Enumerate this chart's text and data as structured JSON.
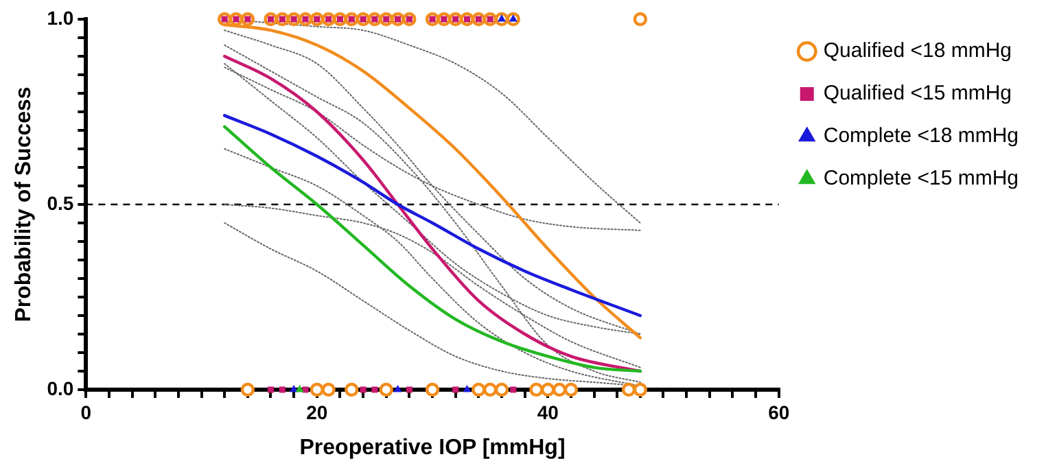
{
  "chart_data": {
    "type": "line",
    "xlabel": "Preoperative IOP [mmHg]",
    "ylabel": "Probability of Success",
    "xlim": [
      0,
      60
    ],
    "ylim": [
      0,
      1
    ],
    "xticks": [
      0,
      {
        "value": 2,
        "label": null
      },
      {
        "value": 4,
        "label": null
      },
      {
        "value": 6,
        "label": null
      },
      {
        "value": 8,
        "label": null
      },
      {
        "value": 10,
        "label": null
      },
      {
        "value": 12,
        "label": null
      },
      {
        "value": 14,
        "label": null
      },
      {
        "value": 16,
        "label": null
      },
      {
        "value": 18,
        "label": null
      },
      20,
      {
        "value": 22,
        "label": null
      },
      {
        "value": 24,
        "label": null
      },
      {
        "value": 26,
        "label": null
      },
      {
        "value": 28,
        "label": null
      },
      {
        "value": 30,
        "label": null
      },
      {
        "value": 32,
        "label": null
      },
      {
        "value": 34,
        "label": null
      },
      {
        "value": 36,
        "label": null
      },
      {
        "value": 38,
        "label": null
      },
      40,
      {
        "value": 42,
        "label": null
      },
      {
        "value": 44,
        "label": null
      },
      {
        "value": 46,
        "label": null
      },
      {
        "value": 48,
        "label": null
      },
      {
        "value": 50,
        "label": null
      },
      {
        "value": 52,
        "label": null
      },
      {
        "value": 54,
        "label": null
      },
      {
        "value": 56,
        "label": null
      },
      {
        "value": 58,
        "label": null
      },
      60
    ],
    "yticks": [
      {
        "value": 0,
        "label": "0.0"
      },
      {
        "value": 0.05,
        "label": null
      },
      {
        "value": 0.1,
        "label": null
      },
      {
        "value": 0.15,
        "label": null
      },
      {
        "value": 0.2,
        "label": null
      },
      {
        "value": 0.25,
        "label": null
      },
      {
        "value": 0.3,
        "label": null
      },
      {
        "value": 0.35,
        "label": null
      },
      {
        "value": 0.4,
        "label": null
      },
      {
        "value": 0.45,
        "label": null
      },
      {
        "value": 0.5,
        "label": "0.5"
      },
      {
        "value": 0.55,
        "label": null
      },
      {
        "value": 0.6,
        "label": null
      },
      {
        "value": 0.65,
        "label": null
      },
      {
        "value": 0.7,
        "label": null
      },
      {
        "value": 0.75,
        "label": null
      },
      {
        "value": 0.8,
        "label": null
      },
      {
        "value": 0.85,
        "label": null
      },
      {
        "value": 0.9,
        "label": null
      },
      {
        "value": 0.95,
        "label": null
      },
      {
        "value": 1,
        "label": "1.0"
      }
    ],
    "grid": false,
    "legend": "right",
    "ref_lines": [
      {
        "axis": "y",
        "value": 0.5,
        "label": null,
        "color": "#000000",
        "line_style": "dashed"
      }
    ],
    "series": [
      {
        "type": "line",
        "color": "#666666",
        "line_style": "dotted",
        "x": [
          12,
          16,
          20,
          24,
          28,
          32,
          36,
          40,
          44,
          48
        ],
        "values": [
          0.93,
          0.86,
          0.79,
          0.72,
          0.6,
          0.45,
          0.28,
          0.12,
          0.05,
          0.02
        ]
      },
      {
        "type": "line",
        "color": "#666666",
        "line_style": "dotted",
        "x": [
          12,
          16,
          20,
          24,
          28,
          32,
          36,
          40,
          44,
          48
        ],
        "values": [
          1.0,
          0.99,
          0.98,
          0.97,
          0.93,
          0.88,
          0.8,
          0.68,
          0.56,
          0.45
        ]
      },
      {
        "type": "line",
        "color": "#666666",
        "line_style": "dotted",
        "x": [
          12,
          16,
          20,
          24,
          27,
          30,
          34,
          38,
          42,
          48
        ],
        "values": [
          0.65,
          0.6,
          0.55,
          0.47,
          0.4,
          0.3,
          0.18,
          0.1,
          0.05,
          0.01
        ]
      },
      {
        "type": "line",
        "color": "#666666",
        "line_style": "dotted",
        "x": [
          12,
          16,
          20,
          24,
          27,
          30,
          34,
          38,
          42,
          48
        ],
        "values": [
          0.97,
          0.93,
          0.88,
          0.76,
          0.66,
          0.55,
          0.42,
          0.3,
          0.22,
          0.15
        ]
      },
      {
        "type": "line",
        "color": "#666666",
        "line_style": "dotted",
        "x": [
          12,
          16,
          20,
          24,
          27,
          30,
          34,
          38,
          42,
          48
        ],
        "values": [
          0.5,
          0.49,
          0.47,
          0.45,
          0.42,
          0.37,
          0.28,
          0.2,
          0.13,
          0.06
        ]
      },
      {
        "type": "line",
        "color": "#666666",
        "line_style": "dotted",
        "x": [
          12,
          16,
          20,
          24,
          27,
          30,
          34,
          38,
          42,
          48
        ],
        "values": [
          0.87,
          0.81,
          0.75,
          0.66,
          0.6,
          0.55,
          0.5,
          0.46,
          0.44,
          0.43
        ]
      },
      {
        "type": "line",
        "color": "#666666",
        "line_style": "dotted",
        "x": [
          12,
          16,
          20,
          24,
          28,
          32,
          36,
          40,
          44,
          48
        ],
        "values": [
          0.45,
          0.38,
          0.32,
          0.24,
          0.16,
          0.09,
          0.05,
          0.03,
          0.02,
          0.01
        ]
      },
      {
        "type": "line",
        "color": "#666666",
        "line_style": "dotted",
        "x": [
          12,
          16,
          20,
          24,
          28,
          32,
          36,
          40,
          44,
          48
        ],
        "values": [
          0.88,
          0.78,
          0.68,
          0.56,
          0.45,
          0.34,
          0.26,
          0.2,
          0.17,
          0.15
        ]
      },
      {
        "color": "#f28c1c",
        "marker": "none",
        "x": [
          12,
          16,
          20,
          24,
          28,
          32,
          36,
          40,
          44,
          48
        ],
        "values": [
          0.985,
          0.97,
          0.93,
          0.86,
          0.76,
          0.65,
          0.52,
          0.38,
          0.25,
          0.14
        ]
      },
      {
        "color": "#c8186e",
        "marker": "none",
        "x": [
          12,
          16,
          20,
          24,
          27,
          30,
          34,
          38,
          42,
          48
        ],
        "values": [
          0.9,
          0.84,
          0.75,
          0.62,
          0.5,
          0.38,
          0.24,
          0.15,
          0.09,
          0.05
        ]
      },
      {
        "color": "#1a1adc",
        "marker": "none",
        "x": [
          12,
          16,
          20,
          24,
          27,
          30,
          34,
          38,
          42,
          48
        ],
        "values": [
          0.74,
          0.69,
          0.63,
          0.56,
          0.5,
          0.45,
          0.38,
          0.32,
          0.27,
          0.2
        ]
      },
      {
        "color": "#22b822",
        "marker": "none",
        "x": [
          12,
          16,
          20,
          24,
          28,
          32,
          36,
          40,
          44,
          48
        ],
        "values": [
          0.71,
          0.6,
          0.5,
          0.39,
          0.28,
          0.19,
          0.13,
          0.09,
          0.06,
          0.05
        ]
      },
      {
        "type": "scatter",
        "name": "Qualified <18 mmHg",
        "color": "#f28c1c",
        "marker": "circle",
        "x": [
          12,
          13,
          14,
          16,
          17,
          18,
          19,
          20,
          21,
          22,
          23,
          24,
          25,
          26,
          27,
          28,
          30,
          31,
          32,
          33,
          34,
          35,
          36,
          37,
          48,
          14,
          20,
          21,
          23,
          26,
          30,
          34,
          35,
          36,
          39,
          40,
          41,
          42,
          47,
          48
        ],
        "values": [
          1,
          1,
          1,
          1,
          1,
          1,
          1,
          1,
          1,
          1,
          1,
          1,
          1,
          1,
          1,
          1,
          1,
          1,
          1,
          1,
          1,
          1,
          1,
          1,
          1,
          0,
          0,
          0,
          0,
          0,
          0,
          0,
          0,
          0,
          0,
          0,
          0,
          0,
          0,
          0
        ]
      },
      {
        "type": "scatter",
        "name": "Qualified <15 mmHg",
        "color": "#c8186e",
        "marker": "square",
        "x": [
          12,
          13,
          14,
          16,
          17,
          18,
          19,
          20,
          21,
          22,
          23,
          24,
          25,
          26,
          27,
          28,
          30,
          31,
          32,
          33,
          34,
          35,
          16,
          17,
          19,
          24,
          25,
          28,
          32,
          37
        ],
        "values": [
          1,
          1,
          1,
          1,
          1,
          1,
          1,
          1,
          1,
          1,
          1,
          1,
          1,
          1,
          1,
          1,
          1,
          1,
          1,
          1,
          1,
          1,
          0,
          0,
          0,
          0,
          0,
          0,
          0,
          0
        ]
      },
      {
        "type": "scatter",
        "name": "Complete <18 mmHg",
        "color": "#1a1adc",
        "marker": "triangle",
        "x": [
          36,
          37,
          18,
          27,
          33
        ],
        "values": [
          1,
          1,
          0,
          0,
          0
        ]
      },
      {
        "type": "scatter",
        "name": "Complete <15 mmHg",
        "color": "#22b822",
        "marker": "triangle",
        "x": [
          18.5
        ],
        "values": [
          0
        ]
      }
    ]
  }
}
